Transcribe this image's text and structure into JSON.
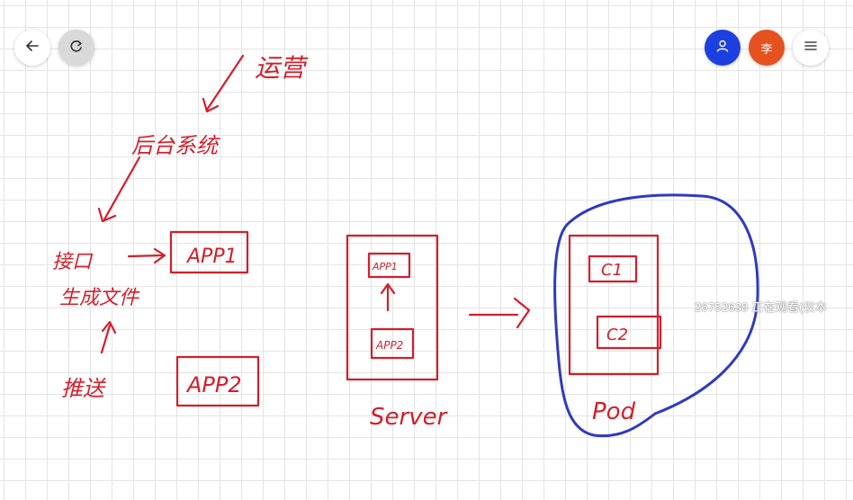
{
  "toolbar": {
    "back_icon": "arrow-left-icon",
    "refresh_icon": "refresh-icon",
    "user_icon": "user-icon",
    "avatar_label": "李",
    "menu_icon": "menu-icon"
  },
  "whiteboard": {
    "notes": {
      "top": "运营",
      "backend": "后台系统",
      "interface": "接口",
      "generate": "生成文件",
      "push": "推送"
    },
    "boxes": {
      "app1": "APP1",
      "app2": "APP2",
      "server_app1": "APP1",
      "server_app2": "APP2",
      "server_label": "Server",
      "pod_c1": "C1",
      "pod_c2": "C2",
      "pod_label": "Pod"
    }
  },
  "overlay": {
    "watching_text": "26752638 正在观看(仅本"
  },
  "colors": {
    "grid_background": "#ffffff",
    "ink_red": "#d21f2b",
    "ink_blue": "#2f3bbd",
    "user_button": "#1d3fe0",
    "avatar_orange": "#e5511f"
  }
}
